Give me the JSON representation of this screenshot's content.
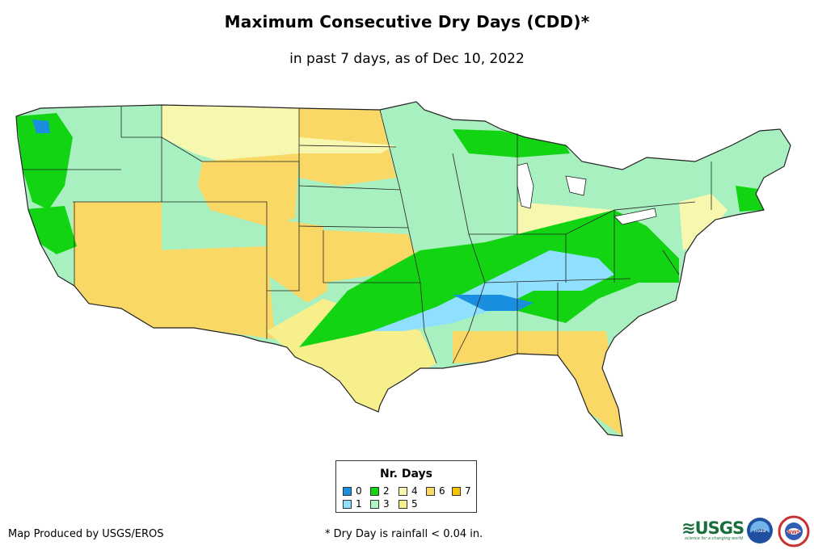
{
  "header": {
    "title": "Maximum Consecutive Dry Days (CDD)*",
    "subtitle": "in past 7 days, as of Dec 10, 2022"
  },
  "map": {
    "region": "Contiguous United States",
    "background_color": "#a8f0c0"
  },
  "legend": {
    "title": "Nr. Days",
    "items": [
      {
        "label": "0",
        "color": "#1a8fe0"
      },
      {
        "label": "1",
        "color": "#8fe0ff"
      },
      {
        "label": "2",
        "color": "#12d412"
      },
      {
        "label": "3",
        "color": "#b0f5c8"
      },
      {
        "label": "4",
        "color": "#f7f7b0"
      },
      {
        "label": "5",
        "color": "#f7ef8c"
      },
      {
        "label": "6",
        "color": "#f9d866"
      },
      {
        "label": "7",
        "color": "#f5c400"
      }
    ]
  },
  "footer": {
    "credit": "Map Produced by USGS/EROS",
    "footnote": "* Dry Day is rainfall < 0.04 in."
  },
  "logos": {
    "usgs": {
      "text": "≋USGS",
      "tagline": "science for a changing world"
    },
    "noaa": {
      "text": "noaa"
    },
    "nws": {
      "text": "NWS"
    }
  }
}
